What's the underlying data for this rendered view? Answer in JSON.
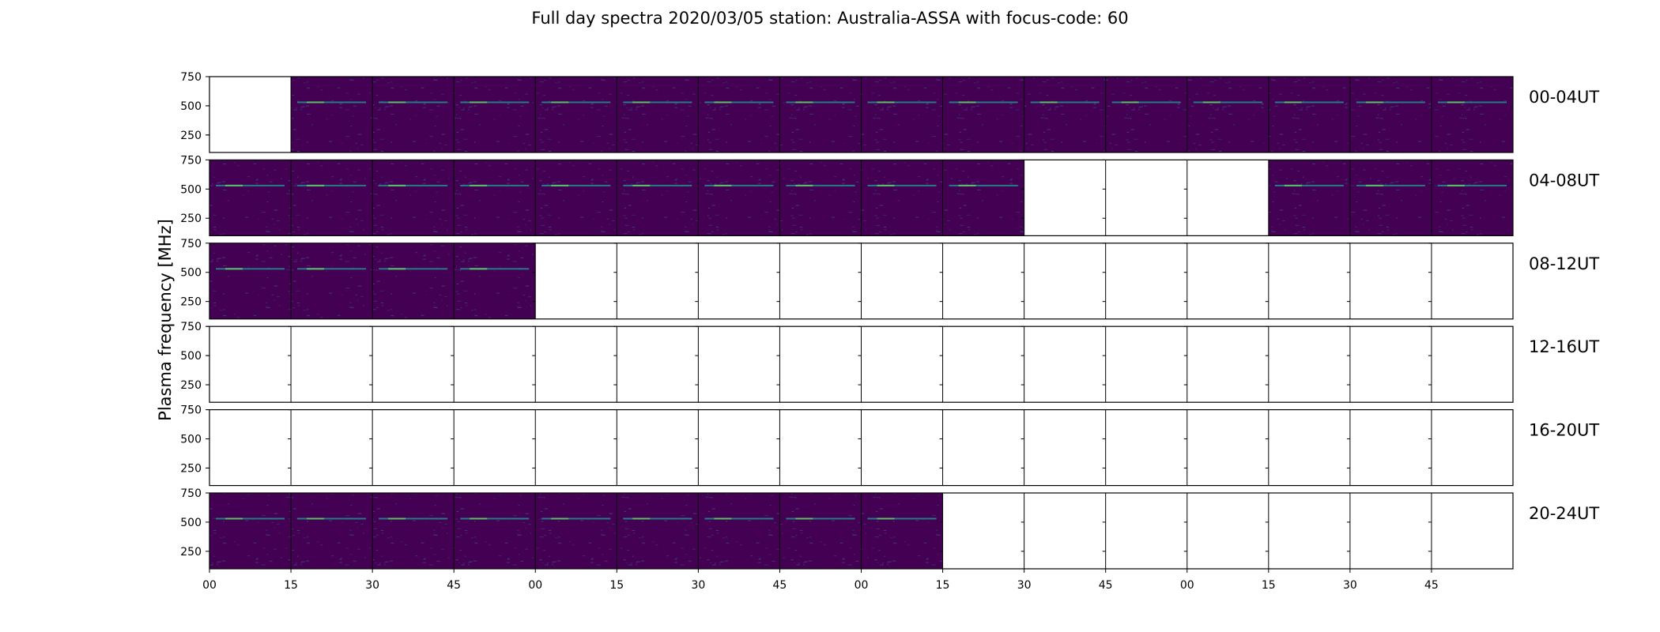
{
  "chart_data": {
    "type": "heatmap",
    "title": "Full day spectra 2020/03/05 station: Australia-ASSA with focus-code: 60",
    "ylabel": "Plasma frequency [MHz]",
    "xlabel": "",
    "ylim": [
      100,
      750
    ],
    "y_ticks": [
      250,
      500,
      750
    ],
    "x_tick_labels": [
      "00",
      "15",
      "30",
      "45",
      "00",
      "15",
      "30",
      "45",
      "00",
      "15",
      "30",
      "45",
      "00",
      "15",
      "30",
      "45"
    ],
    "panels_per_row": 16,
    "colormap": [
      "#440154",
      "#3b528b",
      "#21918c",
      "#5ec962",
      "#fde725"
    ],
    "rows": [
      {
        "label": "00-04UT",
        "filled": [
          0,
          1,
          1,
          1,
          1,
          1,
          1,
          1,
          1,
          1,
          1,
          1,
          1,
          1,
          1,
          1
        ]
      },
      {
        "label": "04-08UT",
        "filled": [
          1,
          1,
          1,
          1,
          1,
          1,
          1,
          1,
          1,
          1,
          0,
          0,
          0,
          1,
          1,
          1
        ]
      },
      {
        "label": "08-12UT",
        "filled": [
          1,
          1,
          1,
          1,
          0,
          0,
          0,
          0,
          0,
          0,
          0,
          0,
          0,
          0,
          0,
          0
        ]
      },
      {
        "label": "12-16UT",
        "filled": [
          0,
          0,
          0,
          0,
          0,
          0,
          0,
          0,
          0,
          0,
          0,
          0,
          0,
          0,
          0,
          0
        ]
      },
      {
        "label": "16-20UT",
        "filled": [
          0,
          0,
          0,
          0,
          0,
          0,
          0,
          0,
          0,
          0,
          0,
          0,
          0,
          0,
          0,
          0
        ]
      },
      {
        "label": "20-24UT",
        "filled": [
          1,
          1,
          1,
          1,
          1,
          1,
          1,
          1,
          1,
          0,
          0,
          0,
          0,
          0,
          0,
          0
        ]
      }
    ]
  }
}
